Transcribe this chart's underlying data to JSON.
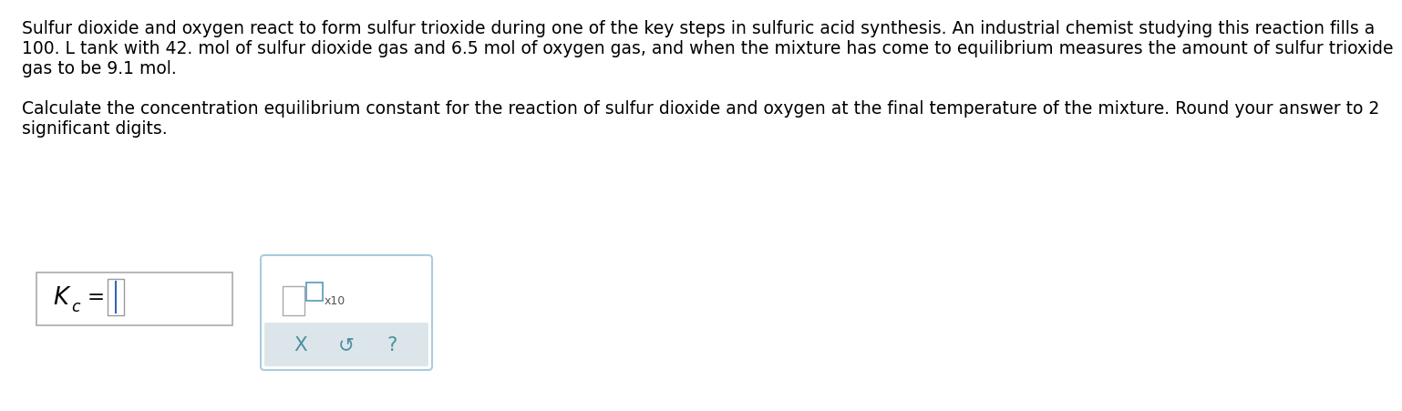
{
  "paragraph1_line1": "Sulfur dioxide and oxygen react to form sulfur trioxide during one of the key steps in sulfuric acid synthesis. An industrial chemist studying this reaction fills a",
  "paragraph1_line2": "100. L tank with 42. mol of sulfur dioxide gas and 6.5 mol of oxygen gas, and when the mixture has come to equilibrium measures the amount of sulfur trioxide",
  "paragraph1_line3": "gas to be 9.1 mol.",
  "paragraph2_line1": "Calculate the concentration equilibrium constant for the reaction of sulfur dioxide and oxygen at the final temperature of the mixture. Round your answer to 2",
  "paragraph2_line2": "significant digits.",
  "button_x": "X",
  "button_undo": "↺",
  "button_help": "?",
  "button_color": "#4d8fa0",
  "bg_color": "#ffffff",
  "text_color": "#000000",
  "input_border_color": "#aaaaaa",
  "popup_border_color": "#aaccdd",
  "popup_bg": "#ffffff",
  "button_bg": "#dce6ea",
  "font_size_body": 13.5,
  "fig_width": 12.0,
  "fig_height": 4.32
}
